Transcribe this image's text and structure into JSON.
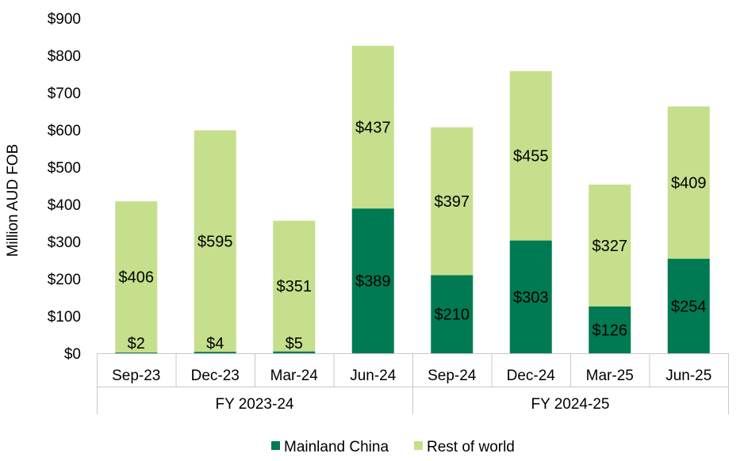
{
  "chart_data": {
    "type": "bar",
    "stacked": true,
    "title": "",
    "xlabel": "",
    "ylabel": "Million AUD FOB",
    "ylim": [
      0,
      900
    ],
    "yticks": [
      "$0",
      "$100",
      "$200",
      "$300",
      "$400",
      "$500",
      "$600",
      "$700",
      "$800",
      "$900"
    ],
    "categories": [
      "Sep-23",
      "Dec-23",
      "Mar-24",
      "Jun-24",
      "Sep-24",
      "Dec-24",
      "Mar-25",
      "Jun-25"
    ],
    "groups": [
      {
        "label": "FY 2023-24",
        "count": 4
      },
      {
        "label": "FY 2024-25",
        "count": 4
      }
    ],
    "series": [
      {
        "name": "Mainland China",
        "color": "#007a53",
        "values": [
          2,
          4,
          5,
          389,
          210,
          303,
          126,
          254
        ],
        "labels": [
          "$2",
          "$4",
          "$5",
          "$389",
          "$210",
          "$303",
          "$126",
          "$254"
        ]
      },
      {
        "name": "Rest of world",
        "color": "#c5df8c",
        "values": [
          406,
          595,
          351,
          437,
          397,
          455,
          327,
          409
        ],
        "labels": [
          "$406",
          "$595",
          "$351",
          "$437",
          "$397",
          "$455",
          "$327",
          "$409"
        ]
      }
    ],
    "legend": "bottom",
    "grid": false
  }
}
